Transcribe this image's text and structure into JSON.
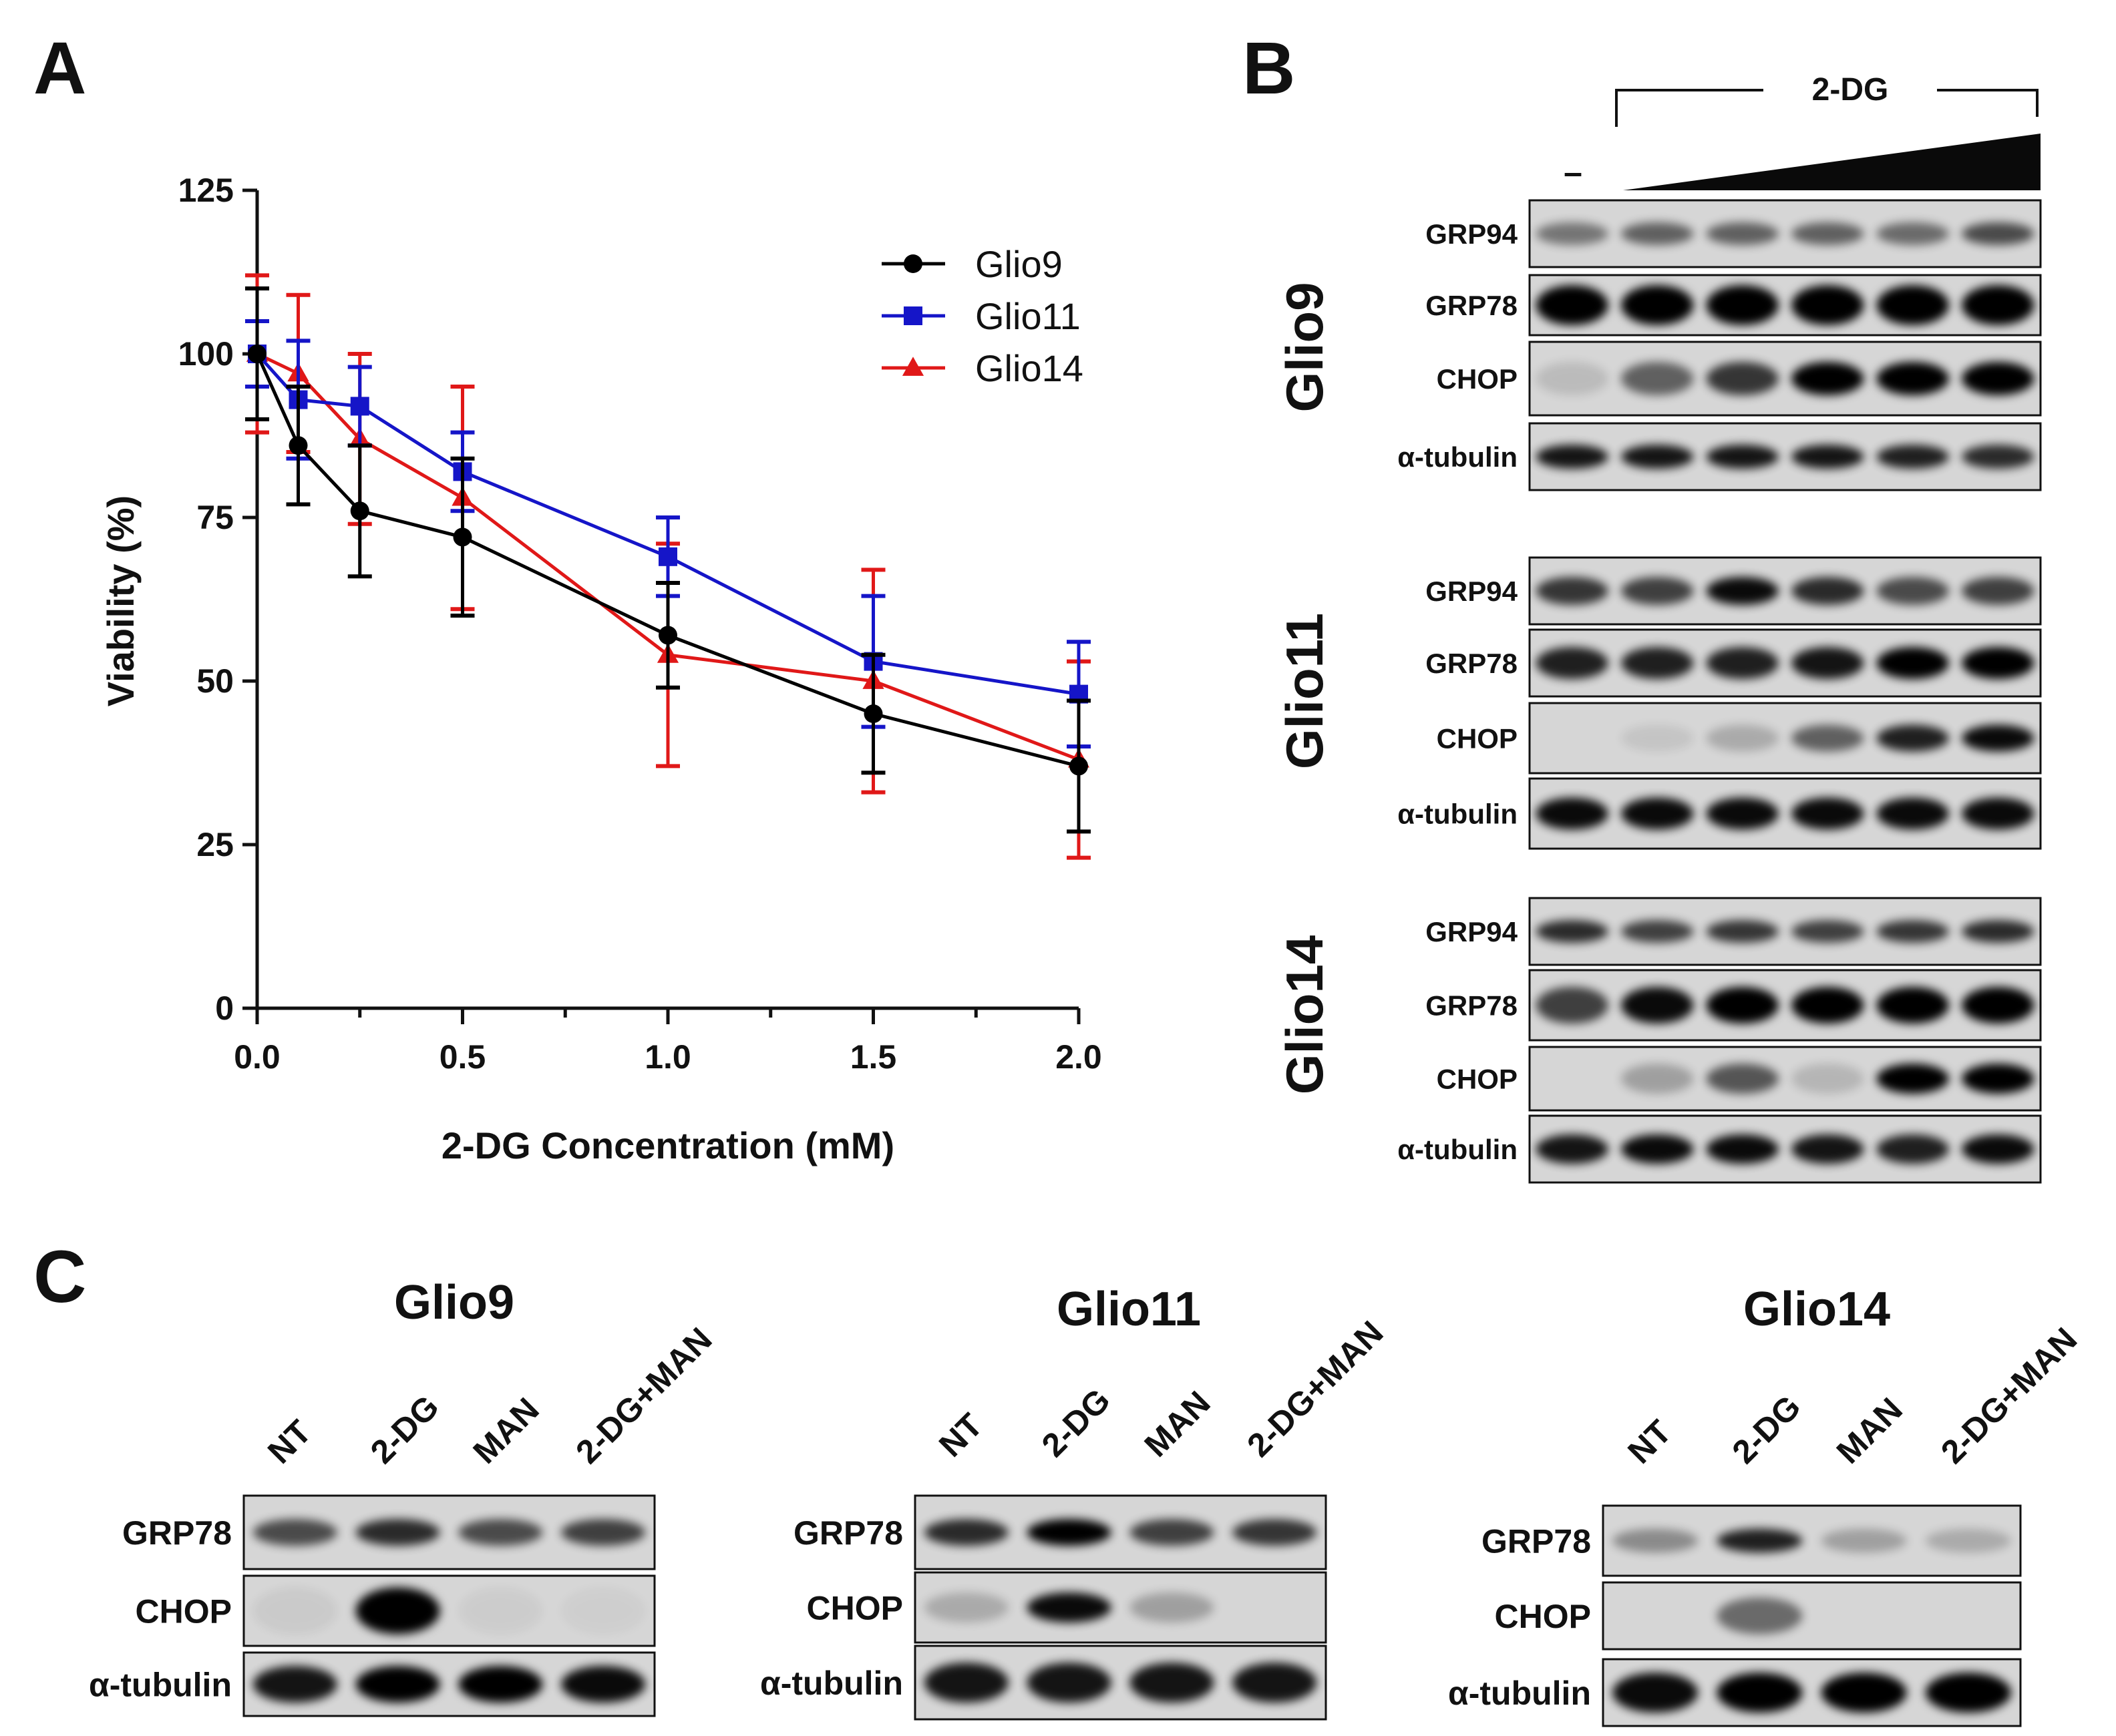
{
  "panels": {
    "a": "A",
    "b": "B",
    "c": "C"
  },
  "chart_data": {
    "type": "line",
    "title": "",
    "xlabel": "2-DG Concentration (mM)",
    "ylabel": "Viability (%)",
    "xlim": [
      0,
      2
    ],
    "ylim": [
      0,
      125
    ],
    "xticks": [
      0.0,
      0.5,
      1.0,
      1.5,
      2.0
    ],
    "xtick_labels": [
      "0.0",
      "0.5",
      "1.0",
      "1.5",
      "2.0"
    ],
    "yticks": [
      0,
      25,
      50,
      75,
      100,
      125
    ],
    "ytick_labels": [
      "0",
      "25",
      "50",
      "75",
      "100",
      "125"
    ],
    "legend_position": "top-right",
    "series": [
      {
        "name": "Glio9",
        "color": "#000000",
        "marker": "circle",
        "x": [
          0,
          0.1,
          0.25,
          0.5,
          1.0,
          1.5,
          2.0
        ],
        "y": [
          100,
          86,
          76,
          72,
          57,
          45,
          37
        ],
        "err": [
          10,
          9,
          10,
          12,
          8,
          9,
          10
        ]
      },
      {
        "name": "Glio11",
        "color": "#1515c8",
        "marker": "square",
        "x": [
          0,
          0.1,
          0.25,
          0.5,
          1.0,
          1.5,
          2.0
        ],
        "y": [
          100,
          93,
          92,
          82,
          69,
          53,
          48
        ],
        "err": [
          5,
          9,
          6,
          6,
          6,
          10,
          8
        ]
      },
      {
        "name": "Glio14",
        "color": "#e01818",
        "marker": "triangle",
        "x": [
          0,
          0.1,
          0.25,
          0.5,
          1.0,
          1.5,
          2.0
        ],
        "y": [
          100,
          97,
          87,
          78,
          54,
          50,
          38
        ],
        "err": [
          12,
          12,
          13,
          17,
          17,
          17,
          15
        ]
      }
    ]
  },
  "panel_b": {
    "treatment_label": "2-DG",
    "control_label": "–",
    "groups": [
      {
        "cell_line": "Glio9",
        "bands": [
          "GRP94",
          "GRP78",
          "CHOP",
          "α-tubulin"
        ]
      },
      {
        "cell_line": "Glio11",
        "bands": [
          "GRP94",
          "GRP78",
          "CHOP",
          "α-tubulin"
        ]
      },
      {
        "cell_line": "Glio14",
        "bands": [
          "GRP94",
          "GRP78",
          "CHOP",
          "α-tubulin"
        ]
      }
    ]
  },
  "panel_c": {
    "groups": [
      {
        "title": "Glio9",
        "lanes": [
          "NT",
          "2-DG",
          "MAN",
          "2-DG+MAN"
        ],
        "bands": [
          "GRP78",
          "CHOP",
          "α-tubulin"
        ]
      },
      {
        "title": "Glio11",
        "lanes": [
          "NT",
          "2-DG",
          "MAN",
          "2-DG+MAN"
        ],
        "bands": [
          "GRP78",
          "CHOP",
          "α-tubulin"
        ]
      },
      {
        "title": "Glio14",
        "lanes": [
          "NT",
          "2-DG",
          "MAN",
          "2-DG+MAN"
        ],
        "bands": [
          "GRP78",
          "CHOP",
          "α-tubulin"
        ]
      }
    ]
  }
}
